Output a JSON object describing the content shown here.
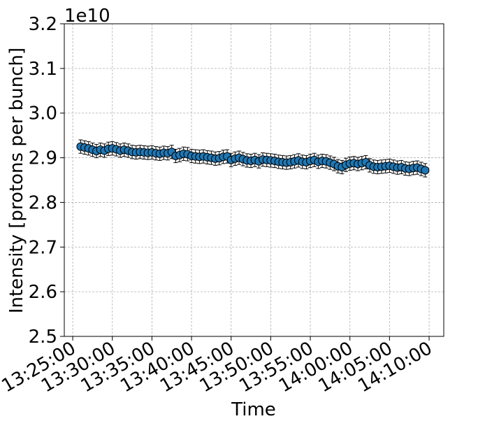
{
  "chart_data": {
    "type": "errorbar_scatter",
    "x_label": "Time",
    "y_label": "Intensity [protons per bunch]",
    "y_offset_label": "1e10",
    "x": [
      "13:26:00",
      "13:26:30",
      "13:27:00",
      "13:27:30",
      "13:28:00",
      "13:28:30",
      "13:29:00",
      "13:29:30",
      "13:30:00",
      "13:30:30",
      "13:31:00",
      "13:31:30",
      "13:32:00",
      "13:32:30",
      "13:33:00",
      "13:33:30",
      "13:34:00",
      "13:34:30",
      "13:35:00",
      "13:35:30",
      "13:36:00",
      "13:36:30",
      "13:37:00",
      "13:37:30",
      "13:38:00",
      "13:38:30",
      "13:39:00",
      "13:39:30",
      "13:40:00",
      "13:40:30",
      "13:41:00",
      "13:41:30",
      "13:42:00",
      "13:42:30",
      "13:43:00",
      "13:43:30",
      "13:44:00",
      "13:44:30",
      "13:45:00",
      "13:45:30",
      "13:46:00",
      "13:46:30",
      "13:47:00",
      "13:47:30",
      "13:48:00",
      "13:48:30",
      "13:49:00",
      "13:49:30",
      "13:50:00",
      "13:50:30",
      "13:51:00",
      "13:51:30",
      "13:52:00",
      "13:52:30",
      "13:53:00",
      "13:53:30",
      "13:54:00",
      "13:54:30",
      "13:55:00",
      "13:55:30",
      "13:56:00",
      "13:56:30",
      "13:57:00",
      "13:57:30",
      "13:58:00",
      "13:58:30",
      "13:59:00",
      "13:59:30",
      "14:00:00",
      "14:00:30",
      "14:01:00",
      "14:01:30",
      "14:02:00",
      "14:02:30",
      "14:03:00",
      "14:03:30",
      "14:04:00",
      "14:04:30",
      "14:05:00",
      "14:05:30",
      "14:06:00",
      "14:06:30",
      "14:07:00",
      "14:07:30",
      "14:08:00",
      "14:08:30",
      "14:09:00",
      "14:09:30"
    ],
    "series": [
      {
        "color": "#1f77b4",
        "error": 0.015,
        "values": [
          2.925,
          2.923,
          2.921,
          2.918,
          2.915,
          2.918,
          2.916,
          2.92,
          2.921,
          2.919,
          2.916,
          2.918,
          2.916,
          2.913,
          2.912,
          2.913,
          2.912,
          2.911,
          2.912,
          2.91,
          2.909,
          2.911,
          2.91,
          2.913,
          2.904,
          2.906,
          2.909,
          2.908,
          2.904,
          2.903,
          2.902,
          2.903,
          2.901,
          2.9,
          2.898,
          2.899,
          2.902,
          2.903,
          2.895,
          2.898,
          2.9,
          2.897,
          2.894,
          2.893,
          2.895,
          2.892,
          2.896,
          2.895,
          2.894,
          2.893,
          2.891,
          2.89,
          2.889,
          2.89,
          2.892,
          2.894,
          2.891,
          2.89,
          2.893,
          2.895,
          2.891,
          2.893,
          2.892,
          2.889,
          2.886,
          2.881,
          2.879,
          2.884,
          2.887,
          2.888,
          2.886,
          2.888,
          2.89,
          2.883,
          2.88,
          2.879,
          2.88,
          2.881,
          2.882,
          2.88,
          2.878,
          2.879,
          2.876,
          2.875,
          2.877,
          2.878,
          2.875,
          2.872
        ]
      }
    ],
    "xlim": [
      "13:23:56",
      "14:11:51"
    ],
    "xticks": [
      "13:25:00",
      "13:30:00",
      "13:35:00",
      "13:40:00",
      "13:45:00",
      "13:50:00",
      "13:55:00",
      "14:00:00",
      "14:05:00",
      "14:10:00"
    ],
    "ylim": [
      2.5,
      3.2
    ],
    "yticks": [
      {
        "value": 2.5,
        "label": "2.5"
      },
      {
        "value": 2.6,
        "label": "2.6"
      },
      {
        "value": 2.7,
        "label": "2.7"
      },
      {
        "value": 2.8,
        "label": "2.8"
      },
      {
        "value": 2.9,
        "label": "2.9"
      },
      {
        "value": 3.0,
        "label": "3.0"
      },
      {
        "value": 3.1,
        "label": "3.1"
      },
      {
        "value": 3.2,
        "label": "3.2"
      }
    ],
    "grid": true
  }
}
